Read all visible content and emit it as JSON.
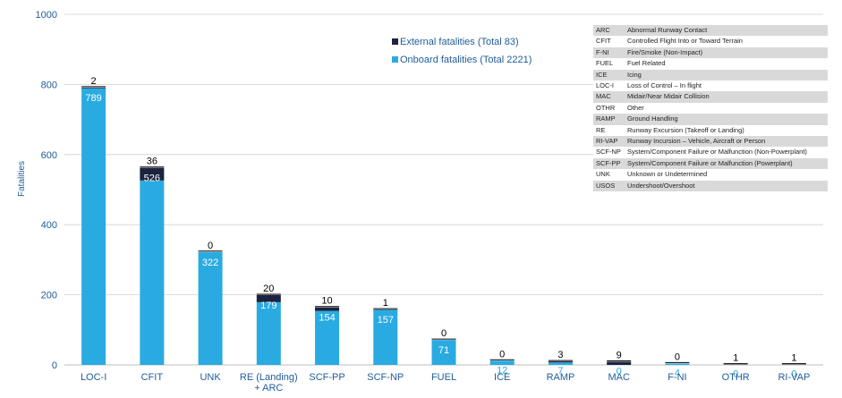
{
  "chart_data": {
    "type": "bar",
    "stacked": true,
    "categories": [
      "LOC-I",
      "CFIT",
      "UNK",
      "RE (Landing)\n+ ARC",
      "SCF-PP",
      "SCF-NP",
      "FUEL",
      "ICE",
      "RAMP",
      "MAC",
      "F-NI",
      "OTHR",
      "RI-VAP"
    ],
    "series": [
      {
        "name": "Onboard fatalities (Total 2221)",
        "color": "#29abe2",
        "values": [
          789,
          526,
          322,
          179,
          154,
          157,
          71,
          12,
          7,
          0,
          4,
          0,
          0
        ]
      },
      {
        "name": "External fatalities (Total 83)",
        "color": "#1c2340",
        "values": [
          2,
          36,
          0,
          20,
          10,
          1,
          0,
          0,
          3,
          9,
          0,
          1,
          1
        ]
      }
    ],
    "ylabel": "Fatalities",
    "xlabel": "",
    "ylim": [
      0,
      1000
    ],
    "yticks": [
      0,
      200,
      400,
      600,
      800,
      1000
    ],
    "grid": true,
    "legend_position": "top-right",
    "legend": [
      {
        "label": "External fatalities (Total 83)",
        "color": "#1c2340"
      },
      {
        "label": "Onboard fatalities (Total 2221)",
        "color": "#29abe2"
      }
    ]
  },
  "abbreviations": [
    {
      "code": "ARC",
      "desc": "Abnormal Runway Contact"
    },
    {
      "code": "CFIT",
      "desc": "Controlled Flight Into or Toward Terrain"
    },
    {
      "code": "F-NI",
      "desc": "Fire/Smoke (Non-Impact)"
    },
    {
      "code": "FUEL",
      "desc": "Fuel Related"
    },
    {
      "code": "ICE",
      "desc": "Icing"
    },
    {
      "code": "LOC-I",
      "desc": "Loss of Control – In flight"
    },
    {
      "code": "MAC",
      "desc": "Midair/Near Midair Collision"
    },
    {
      "code": "OTHR",
      "desc": "Other"
    },
    {
      "code": "RAMP",
      "desc": "Ground Handling"
    },
    {
      "code": "RE",
      "desc": "Runway Excursion (Takeoff or Landing)"
    },
    {
      "code": "RI-VAP",
      "desc": "Runway Incursion – Vehicle, Aircraft or Person"
    },
    {
      "code": "SCF-NP",
      "desc": "System/Component Failure or Malfunction (Non-Powerplant)"
    },
    {
      "code": "SCF-PP",
      "desc": "System/Component Failure or Malfunction (Powerplant)"
    },
    {
      "code": "UNK",
      "desc": "Unknown or Undetermined"
    },
    {
      "code": "USOS",
      "desc": "Undershoot/Overshoot"
    }
  ]
}
